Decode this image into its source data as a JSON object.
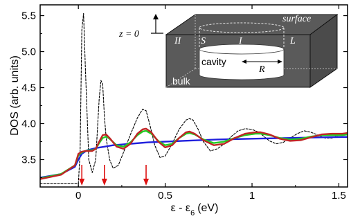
{
  "chart_data": {
    "type": "line",
    "title": "",
    "xlabel": "ε - ε",
    "xlabel_sub": "6",
    "xlabel_unit": "(eV)",
    "ylabel": "DOS (arb. units)",
    "xlim": [
      -0.22,
      1.55
    ],
    "ylim": [
      3.12,
      5.65
    ],
    "xticks": [
      0,
      0.5,
      1,
      1.5
    ],
    "xtick_labels": [
      "0",
      "0.5",
      "1",
      "1.5"
    ],
    "yticks": [
      3.5,
      4.0,
      4.5,
      5.0,
      5.5
    ],
    "ytick_labels": [
      "3.5",
      "4.0",
      "4.5",
      "5.0",
      "5.5"
    ],
    "grid": false,
    "series": [
      {
        "style": "dashed",
        "color": "#000000",
        "x": [
          -0.22,
          0.0,
          0.01,
          0.02,
          0.03,
          0.04,
          0.06,
          0.08,
          0.1,
          0.12,
          0.13,
          0.14,
          0.15,
          0.16,
          0.18,
          0.2,
          0.23,
          0.26,
          0.3,
          0.34,
          0.37,
          0.39,
          0.41,
          0.44,
          0.47,
          0.5,
          0.54,
          0.58,
          0.62,
          0.64,
          0.66,
          0.69,
          0.72,
          0.76,
          0.8,
          0.84,
          0.88,
          0.92,
          0.96,
          1.0,
          1.04,
          1.07,
          1.1,
          1.14,
          1.18,
          1.22,
          1.26,
          1.3,
          1.34,
          1.38,
          1.42,
          1.46,
          1.5,
          1.55
        ],
        "y": [
          3.17,
          3.17,
          3.6,
          5.3,
          5.53,
          4.8,
          3.5,
          3.32,
          3.5,
          4.35,
          4.6,
          4.55,
          4.1,
          3.8,
          3.5,
          3.38,
          3.42,
          3.6,
          3.85,
          4.08,
          4.2,
          4.18,
          4.0,
          3.7,
          3.53,
          3.55,
          3.72,
          3.92,
          4.05,
          4.07,
          4.05,
          3.92,
          3.75,
          3.62,
          3.65,
          3.72,
          3.82,
          3.9,
          3.93,
          3.92,
          3.88,
          3.82,
          3.76,
          3.72,
          3.74,
          3.8,
          3.86,
          3.9,
          3.88,
          3.84,
          3.8,
          3.8,
          3.84,
          3.88
        ]
      },
      {
        "style": "solid",
        "color": "#1f1fdd",
        "x": [
          -0.22,
          -0.1,
          -0.02,
          0.0,
          0.02,
          0.05,
          0.1,
          0.15,
          0.2,
          0.3,
          0.4,
          0.5,
          0.6,
          0.7,
          0.8,
          0.9,
          1.0,
          1.1,
          1.2,
          1.3,
          1.4,
          1.55
        ],
        "y": [
          3.25,
          3.3,
          3.4,
          3.5,
          3.58,
          3.63,
          3.66,
          3.68,
          3.7,
          3.72,
          3.74,
          3.75,
          3.76,
          3.77,
          3.78,
          3.785,
          3.79,
          3.795,
          3.8,
          3.805,
          3.81,
          3.815
        ]
      },
      {
        "style": "solid",
        "color": "#22cc22",
        "x": [
          -0.22,
          -0.1,
          -0.02,
          0.0,
          0.02,
          0.04,
          0.06,
          0.08,
          0.1,
          0.12,
          0.14,
          0.16,
          0.18,
          0.22,
          0.26,
          0.3,
          0.34,
          0.37,
          0.39,
          0.42,
          0.46,
          0.5,
          0.54,
          0.58,
          0.62,
          0.64,
          0.67,
          0.72,
          0.78,
          0.84,
          0.9,
          0.96,
          1.02,
          1.05,
          1.1,
          1.16,
          1.22,
          1.28,
          1.34,
          1.4,
          1.46,
          1.52,
          1.55
        ],
        "y": [
          3.24,
          3.3,
          3.42,
          3.56,
          3.6,
          3.62,
          3.63,
          3.63,
          3.65,
          3.73,
          3.8,
          3.82,
          3.79,
          3.7,
          3.68,
          3.74,
          3.84,
          3.89,
          3.9,
          3.86,
          3.76,
          3.7,
          3.72,
          3.8,
          3.86,
          3.87,
          3.85,
          3.78,
          3.73,
          3.75,
          3.8,
          3.84,
          3.86,
          3.86,
          3.84,
          3.8,
          3.78,
          3.79,
          3.82,
          3.84,
          3.84,
          3.84,
          3.85
        ]
      },
      {
        "style": "solid",
        "color": "#c02424",
        "x": [
          -0.22,
          -0.1,
          -0.02,
          0.0,
          0.02,
          0.04,
          0.06,
          0.08,
          0.1,
          0.12,
          0.14,
          0.16,
          0.18,
          0.22,
          0.26,
          0.3,
          0.34,
          0.37,
          0.39,
          0.42,
          0.46,
          0.5,
          0.54,
          0.58,
          0.62,
          0.64,
          0.67,
          0.72,
          0.78,
          0.84,
          0.9,
          0.96,
          1.02,
          1.05,
          1.1,
          1.16,
          1.22,
          1.28,
          1.34,
          1.4,
          1.46,
          1.52,
          1.55
        ],
        "y": [
          3.23,
          3.29,
          3.42,
          3.58,
          3.61,
          3.62,
          3.62,
          3.62,
          3.65,
          3.75,
          3.84,
          3.85,
          3.8,
          3.68,
          3.65,
          3.72,
          3.86,
          3.92,
          3.93,
          3.88,
          3.75,
          3.67,
          3.7,
          3.8,
          3.88,
          3.89,
          3.86,
          3.77,
          3.7,
          3.72,
          3.8,
          3.86,
          3.88,
          3.88,
          3.85,
          3.79,
          3.76,
          3.77,
          3.81,
          3.85,
          3.86,
          3.86,
          3.87
        ]
      }
    ],
    "arrows": {
      "color": "#dd1111",
      "x": [
        0.02,
        0.15,
        0.39
      ]
    },
    "inset": {
      "surface_label": "surface",
      "z_label": "z = 0",
      "region_labels": [
        "II",
        "S",
        "I",
        "L"
      ],
      "cavity_label": "cavity",
      "radius_label": "R",
      "bulk_label": "bulk",
      "box_color": "#5a5a5a"
    }
  }
}
